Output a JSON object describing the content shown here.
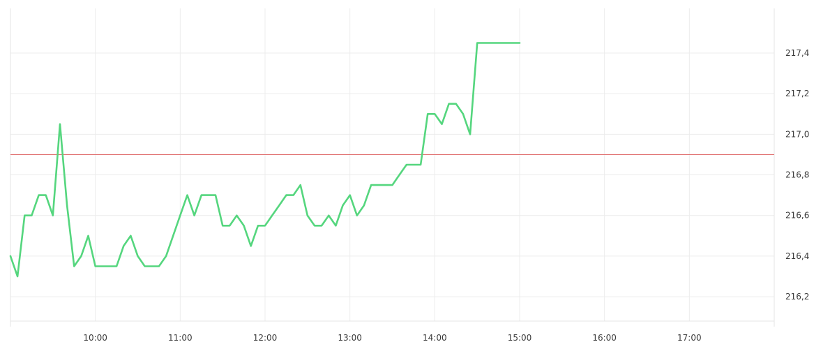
{
  "chart_data": {
    "type": "line",
    "title": "",
    "xlabel": "",
    "ylabel": "",
    "x_axis": {
      "range": [
        "09:00",
        "18:00"
      ],
      "ticks": [
        "10:00",
        "11:00",
        "12:00",
        "13:00",
        "14:00",
        "15:00",
        "16:00",
        "17:00"
      ]
    },
    "y_axis": {
      "position": "right",
      "range": [
        216.08,
        217.62
      ],
      "ticks": [
        "216,2",
        "216,4",
        "216,6",
        "216,8",
        "217,0",
        "217,2",
        "217,4"
      ]
    },
    "grid": true,
    "reference_line": {
      "value": 216.9,
      "color": "#e07070"
    },
    "series": [
      {
        "color": "#55d67e",
        "points": [
          [
            "09:00",
            216.4
          ],
          [
            "09:05",
            216.3
          ],
          [
            "09:10",
            216.6
          ],
          [
            "09:15",
            216.6
          ],
          [
            "09:20",
            216.7
          ],
          [
            "09:25",
            216.7
          ],
          [
            "09:30",
            216.6
          ],
          [
            "09:35",
            217.05
          ],
          [
            "09:40",
            216.65
          ],
          [
            "09:45",
            216.35
          ],
          [
            "09:50",
            216.4
          ],
          [
            "09:55",
            216.5
          ],
          [
            "10:00",
            216.35
          ],
          [
            "10:05",
            216.35
          ],
          [
            "10:10",
            216.35
          ],
          [
            "10:15",
            216.35
          ],
          [
            "10:20",
            216.45
          ],
          [
            "10:25",
            216.5
          ],
          [
            "10:30",
            216.4
          ],
          [
            "10:35",
            216.35
          ],
          [
            "10:40",
            216.35
          ],
          [
            "10:45",
            216.35
          ],
          [
            "10:50",
            216.4
          ],
          [
            "10:55",
            216.5
          ],
          [
            "11:00",
            216.6
          ],
          [
            "11:05",
            216.7
          ],
          [
            "11:10",
            216.6
          ],
          [
            "11:15",
            216.7
          ],
          [
            "11:20",
            216.7
          ],
          [
            "11:25",
            216.7
          ],
          [
            "11:30",
            216.55
          ],
          [
            "11:35",
            216.55
          ],
          [
            "11:40",
            216.6
          ],
          [
            "11:45",
            216.55
          ],
          [
            "11:50",
            216.45
          ],
          [
            "11:55",
            216.55
          ],
          [
            "12:00",
            216.55
          ],
          [
            "12:05",
            216.6
          ],
          [
            "12:10",
            216.65
          ],
          [
            "12:15",
            216.7
          ],
          [
            "12:20",
            216.7
          ],
          [
            "12:25",
            216.75
          ],
          [
            "12:30",
            216.6
          ],
          [
            "12:35",
            216.55
          ],
          [
            "12:40",
            216.55
          ],
          [
            "12:45",
            216.6
          ],
          [
            "12:50",
            216.55
          ],
          [
            "12:55",
            216.65
          ],
          [
            "13:00",
            216.7
          ],
          [
            "13:05",
            216.6
          ],
          [
            "13:10",
            216.65
          ],
          [
            "13:15",
            216.75
          ],
          [
            "13:20",
            216.75
          ],
          [
            "13:25",
            216.75
          ],
          [
            "13:30",
            216.75
          ],
          [
            "13:35",
            216.8
          ],
          [
            "13:40",
            216.85
          ],
          [
            "13:45",
            216.85
          ],
          [
            "13:50",
            216.85
          ],
          [
            "13:55",
            217.1
          ],
          [
            "14:00",
            217.1
          ],
          [
            "14:05",
            217.05
          ],
          [
            "14:10",
            217.15
          ],
          [
            "14:15",
            217.15
          ],
          [
            "14:20",
            217.1
          ],
          [
            "14:25",
            217.0
          ],
          [
            "14:30",
            217.45
          ],
          [
            "14:35",
            217.45
          ],
          [
            "14:40",
            217.45
          ],
          [
            "14:45",
            217.45
          ],
          [
            "14:50",
            217.45
          ],
          [
            "14:55",
            217.45
          ],
          [
            "15:00",
            217.45
          ]
        ]
      }
    ]
  }
}
